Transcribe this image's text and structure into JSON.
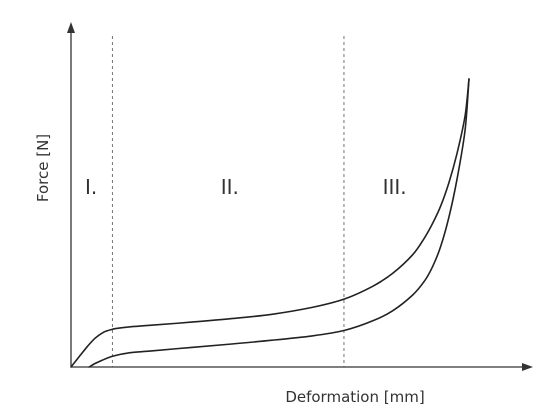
{
  "chart_data": {
    "type": "line",
    "title": "",
    "xlabel": "Deformation [mm]",
    "ylabel": "Force [N]",
    "ticks_shown": false,
    "grid": false,
    "xlim": [
      0,
      100
    ],
    "ylim": [
      0,
      100
    ],
    "region_dividers_x": [
      10.3,
      67.9
    ],
    "regions": [
      {
        "label": "I.",
        "x": 5.0,
        "y": 60
      },
      {
        "label": "II.",
        "x": 39.5,
        "y": 60
      },
      {
        "label": "III.",
        "x": 80.5,
        "y": 60
      }
    ],
    "series": [
      {
        "x": [
          0,
          2,
          4,
          6,
          8,
          10,
          12,
          15,
          20,
          30,
          40,
          50,
          60,
          68,
          75,
          80,
          85,
          88,
          90,
          92,
          94,
          96,
          98,
          99
        ],
        "y": [
          0,
          3.5,
          7,
          10,
          12,
          13,
          13.5,
          14,
          14.5,
          15.6,
          16.8,
          18.3,
          20.7,
          23.6,
          28,
          32.5,
          39,
          45,
          50,
          56,
          64,
          74,
          87,
          100
        ]
      },
      {
        "x": [
          4.5,
          6,
          8,
          10,
          12,
          15,
          20,
          30,
          40,
          50,
          60,
          68,
          75,
          80,
          85,
          88,
          90,
          92,
          94,
          96,
          98,
          99
        ],
        "y": [
          0,
          1.2,
          2.5,
          3.6,
          4.3,
          5,
          5.6,
          6.8,
          8,
          9.3,
          10.8,
          12.7,
          16,
          19.5,
          25,
          30,
          35,
          42,
          52,
          65,
          82,
          100
        ]
      }
    ]
  }
}
